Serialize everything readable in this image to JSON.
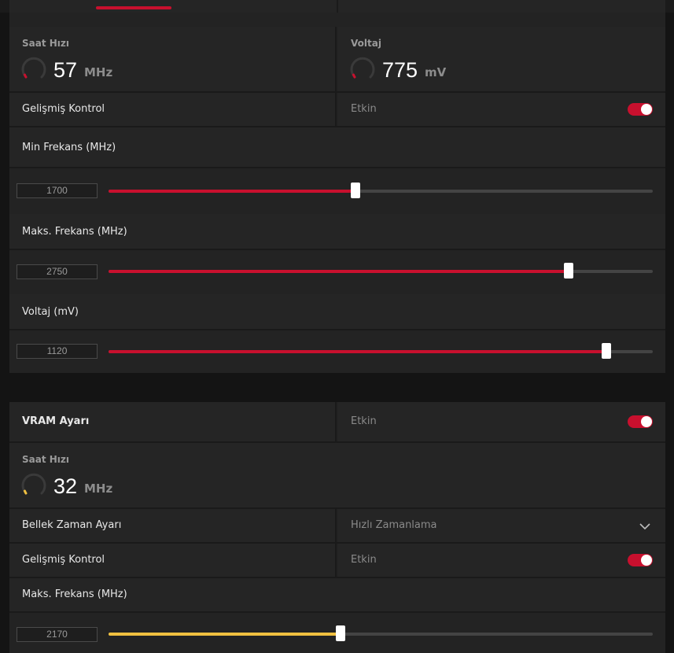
{
  "colors": {
    "accent": "#c8102e",
    "memory_accent": "#f0c040",
    "track": "#444444"
  },
  "gpu": {
    "clock": {
      "title": "Saat Hızı",
      "value": "57",
      "unit": "MHz"
    },
    "voltage": {
      "title": "Voltaj",
      "value": "775",
      "unit": "mV"
    },
    "advanced": {
      "label": "Gelişmiş Kontrol",
      "state": "Etkin",
      "on": true
    },
    "min_freq": {
      "label": "Min Frekans (MHz)",
      "value": "1700",
      "fraction": 0.454
    },
    "max_freq": {
      "label": "Maks. Frekans (MHz)",
      "value": "2750",
      "fraction": 0.845
    },
    "voltage_slider": {
      "label": "Voltaj (mV)",
      "value": "1120",
      "fraction": 0.915
    }
  },
  "vram": {
    "header": {
      "label": "VRAM Ayarı",
      "state": "Etkin",
      "on": true
    },
    "clock": {
      "title": "Saat Hızı",
      "value": "32",
      "unit": "MHz"
    },
    "memory_timing": {
      "label": "Bellek Zaman Ayarı",
      "value": "Hızlı Zamanlama",
      "icon": "chevron-down-icon"
    },
    "advanced": {
      "label": "Gelişmiş Kontrol",
      "state": "Etkin",
      "on": true
    },
    "max_freq": {
      "label": "Maks. Frekans (MHz)",
      "value": "2170",
      "fraction": 0.427
    }
  }
}
